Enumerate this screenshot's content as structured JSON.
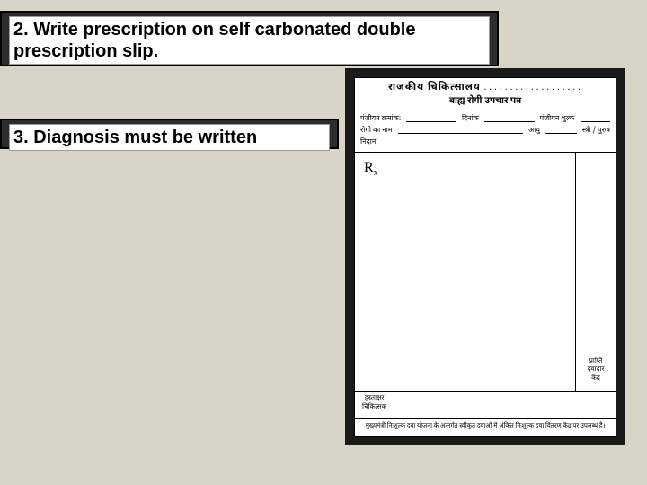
{
  "bars": {
    "item2": "2. Write prescription on self carbonated double prescription slip.",
    "item3": "3. Diagnosis must be written"
  },
  "slip": {
    "header_line1": "राजकीय चिकित्सालय",
    "header_dots": "...................",
    "header_line2": "बाह्य रोगी उपचार पत्र",
    "fields": {
      "reg_no": "पंजीयन क्रमांक:",
      "date": "दिनांक",
      "reg_fee": "पंजीयन शुल्क",
      "patient_name": "रोगी का नाम",
      "age": "आयु",
      "sex": "स्त्री / पुरुष",
      "diagnosis": "निदान"
    },
    "rx_symbol": "R",
    "rx_sub": "x",
    "sig_left_l1": "हस्ताक्षर",
    "sig_left_l2": "चिकित्सक",
    "sig_right_l1": "प्राप्ति",
    "sig_right_l2": "दवादार",
    "sig_right_l3": "केंद्र",
    "footer_note": "मुख्यमंत्री निःशुल्क दवा योजना के अन्तर्गत स्वीकृत दवाओं में अंकित निःशुल्क दवा वितरण केंद्र पर उपलब्ध है।"
  },
  "colors": {
    "page_bg": "#d8d4c7",
    "bar_bg": "#2c2c2c",
    "slip_wrap_bg": "#1a1a1a",
    "paper": "#ffffff",
    "text": "#000000"
  }
}
